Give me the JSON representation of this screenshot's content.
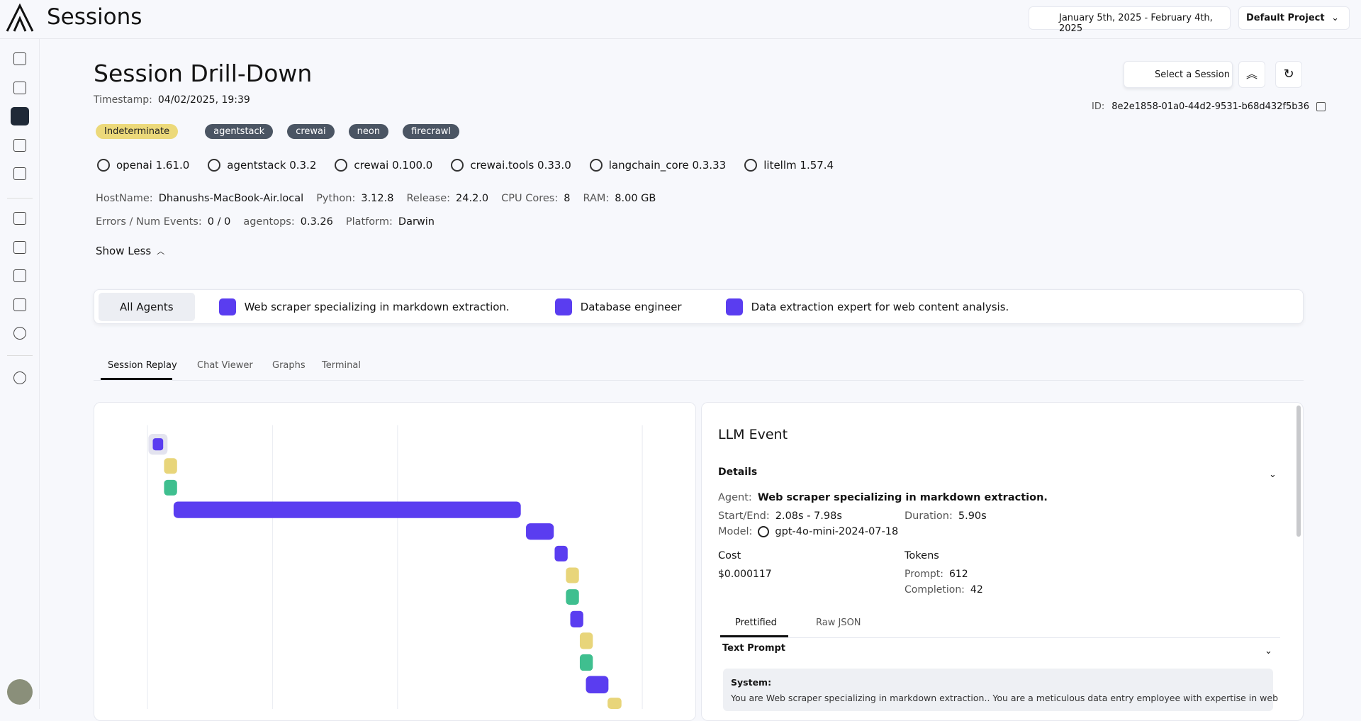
{
  "header": {
    "title": "Sessions",
    "date_range": "January 5th, 2025 - February 4th, 2025",
    "project": "Default Project"
  },
  "session": {
    "title": "Session Drill-Down",
    "timestamp_label": "Timestamp:",
    "timestamp": "04/02/2025, 19:39",
    "select_button": "Select a Session",
    "id_label": "ID:",
    "id": "8e2e1858-01a0-44d2-9531-b68d432f5b36",
    "status": "Indeterminate",
    "tags": [
      "agentstack",
      "crewai",
      "neon",
      "firecrawl"
    ],
    "packages": [
      "openai 1.61.0",
      "agentstack 0.3.2",
      "crewai 0.100.0",
      "crewai.tools 0.33.0",
      "langchain_core 0.3.33",
      "litellm 1.57.4"
    ],
    "info_rows": [
      [
        {
          "label": "HostName:",
          "value": "Dhanushs-MacBook-Air.local"
        },
        {
          "label": "Python:",
          "value": "3.12.8"
        },
        {
          "label": "Release:",
          "value": "24.2.0"
        },
        {
          "label": "CPU Cores:",
          "value": "8"
        },
        {
          "label": "RAM:",
          "value": "8.00 GB"
        }
      ],
      [
        {
          "label": "Errors / Num Events:",
          "value": "0 / 0"
        },
        {
          "label": "agentops:",
          "value": "0.3.26"
        },
        {
          "label": "Platform:",
          "value": "Darwin"
        }
      ]
    ],
    "show_less": "Show Less"
  },
  "agents": [
    "All Agents",
    "Web scraper specializing in markdown extraction.",
    "Database engineer",
    "Data extraction expert for web content analysis."
  ],
  "tabs": [
    "Session Replay",
    "Chat Viewer",
    "Graphs",
    "Terminal"
  ],
  "event": {
    "title": "LLM Event",
    "details": "Details",
    "agent_label": "Agent:",
    "agent": "Web scraper specializing in markdown extraction.",
    "start_end_label": "Start/End:",
    "start_end": "2.08s - 7.98s",
    "duration_label": "Duration:",
    "duration": "5.90s",
    "model_label": "Model:",
    "model": "gpt-4o-mini-2024-07-18",
    "cost_label": "Cost",
    "cost": "$0.000117",
    "tokens_label": "Tokens",
    "prompt_label": "Prompt:",
    "prompt": "612",
    "completion_label": "Completion:",
    "completion": "42",
    "view_tabs": [
      "Prettified",
      "Raw JSON"
    ],
    "text_prompt": "Text Prompt",
    "system_label": "System:",
    "system_text": "You are Web scraper specializing in markdown extraction.. You are a meticulous data entry employee with expertise in web"
  }
}
